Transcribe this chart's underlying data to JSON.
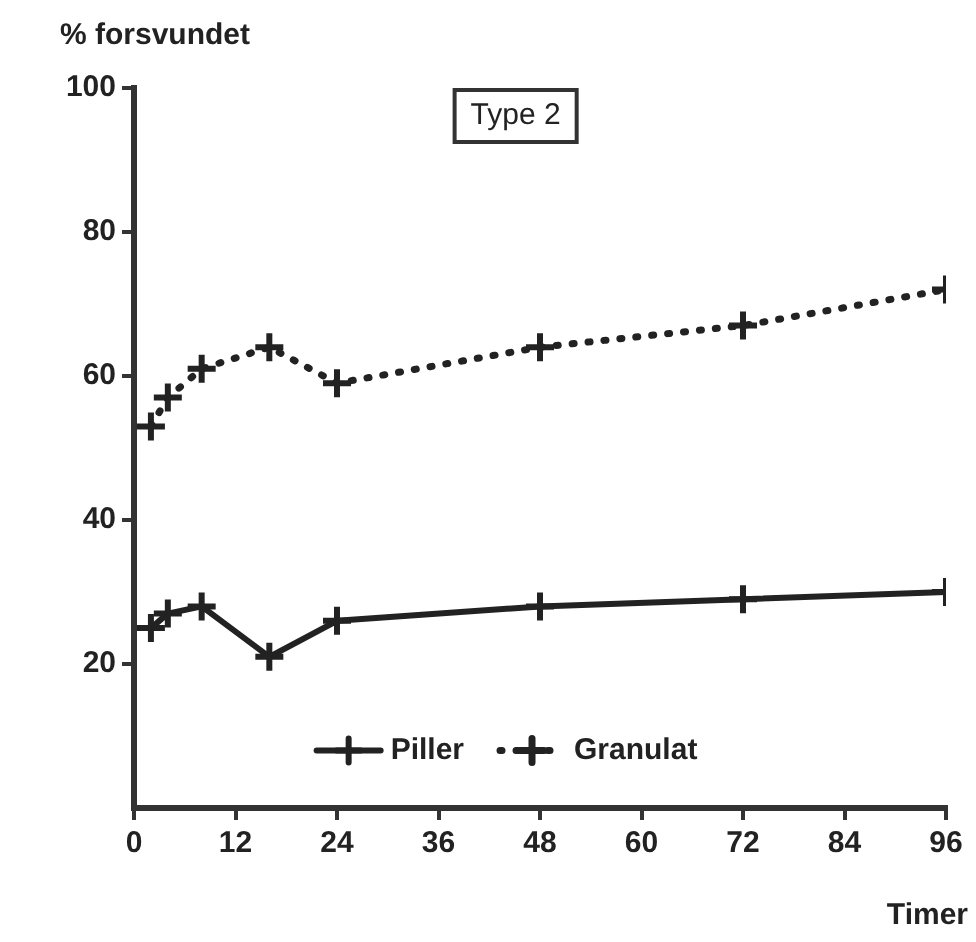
{
  "chart_data": {
    "type": "line",
    "title": "Type 2",
    "xlabel": "Timer",
    "ylabel": "% forsvundet",
    "xlim": [
      0,
      96
    ],
    "xticks": [
      0,
      12,
      24,
      36,
      48,
      60,
      72,
      84,
      96
    ],
    "ylim": [
      0,
      100
    ],
    "yticks": [
      20,
      40,
      60,
      80,
      100
    ],
    "x": [
      2,
      4,
      8,
      16,
      24,
      48,
      72,
      96
    ],
    "series": [
      {
        "name": "Piller",
        "color": "#222222",
        "line_style": "solid",
        "values": [
          25,
          27,
          28,
          21,
          26,
          28,
          29,
          30
        ]
      },
      {
        "name": "Granulat",
        "color": "#222222",
        "line_style": "dotted",
        "values": [
          53,
          57,
          61,
          64,
          59,
          64,
          67,
          72
        ]
      }
    ],
    "grid": false,
    "legend": "bottom",
    "marker": "cross"
  }
}
